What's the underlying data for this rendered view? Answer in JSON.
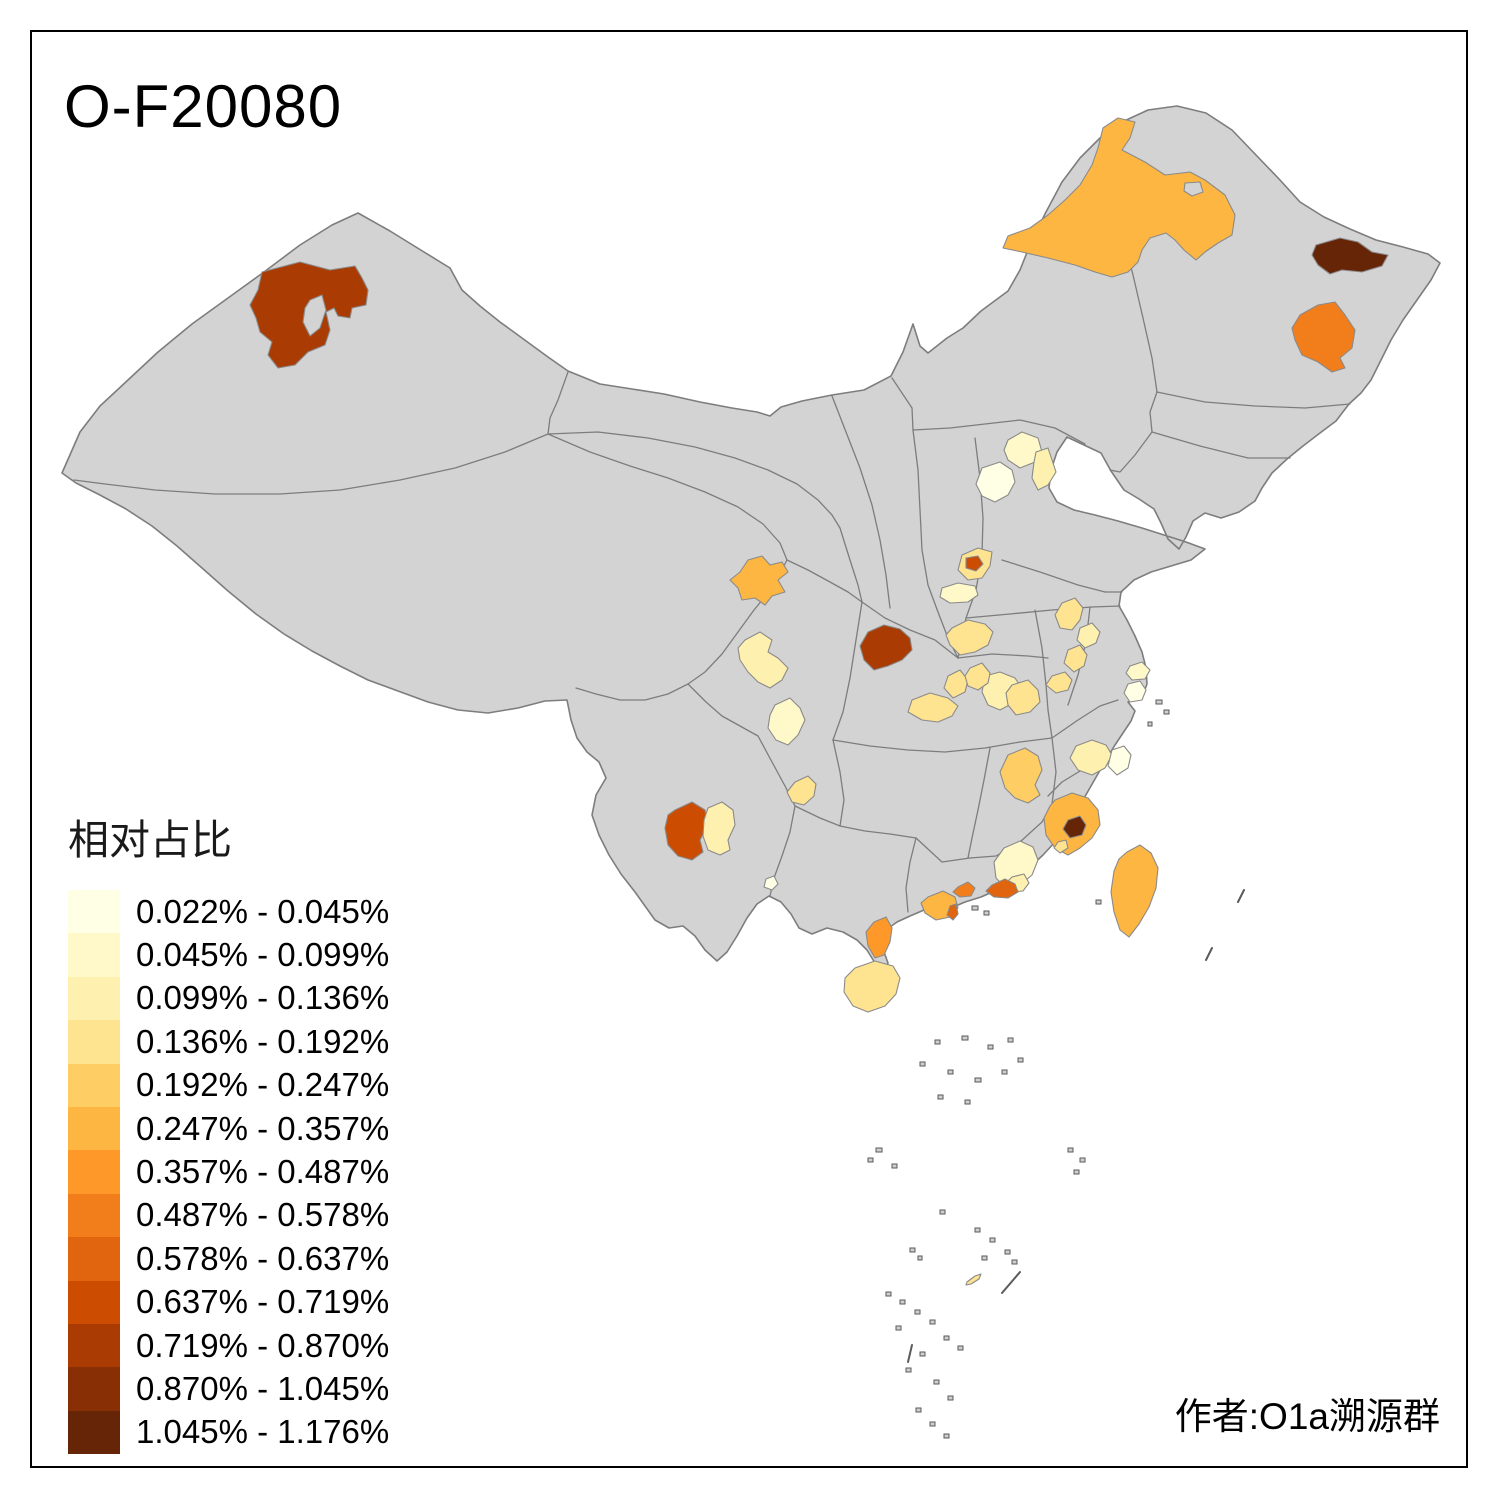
{
  "title": "O-F20080",
  "attribution": "作者:O1a溯源群",
  "legend": {
    "title": "相对占比",
    "classes": [
      {
        "range": "0.022% - 0.045%",
        "color": "#FFFFE5"
      },
      {
        "range": "0.045% - 0.099%",
        "color": "#FFF9C9"
      },
      {
        "range": "0.099% - 0.136%",
        "color": "#FEF0AE"
      },
      {
        "range": "0.136% - 0.192%",
        "color": "#FEE391"
      },
      {
        "range": "0.192% - 0.247%",
        "color": "#FECE65"
      },
      {
        "range": "0.247% - 0.357%",
        "color": "#FEB642"
      },
      {
        "range": "0.357% - 0.487%",
        "color": "#FE9929"
      },
      {
        "range": "0.487% - 0.578%",
        "color": "#F27E1B"
      },
      {
        "range": "0.578% - 0.637%",
        "color": "#E1640E"
      },
      {
        "range": "0.637% - 0.719%",
        "color": "#CC4C02"
      },
      {
        "range": "0.719% - 0.870%",
        "color": "#AA3C03"
      },
      {
        "range": "0.870% - 1.045%",
        "color": "#882F05"
      },
      {
        "range": "1.045% - 1.176%",
        "color": "#662506"
      }
    ]
  },
  "map": {
    "land_fill": "#D3D3D3",
    "boundary_color": "#7D7D7D",
    "region_stroke": "#8A8A8A",
    "sea_fill": "#FFFFFF",
    "islet_fill": "#CFCFCF",
    "islet_stroke": "#5A5A5A",
    "regions": [
      {
        "id": "northwest-xinjiang",
        "class_index": 10
      },
      {
        "id": "hulunbuir-inner-mongolia",
        "class_index": 5
      },
      {
        "id": "east-heilongjiang",
        "class_index": 12
      },
      {
        "id": "southeast-heilongjiang",
        "class_index": 7
      },
      {
        "id": "beijing",
        "class_index": 1
      },
      {
        "id": "central-hebei",
        "class_index": 0
      },
      {
        "id": "tianjin",
        "class_index": 2
      },
      {
        "id": "north-henan",
        "class_index": 3
      },
      {
        "id": "north-henan-spot",
        "class_index": 9
      },
      {
        "id": "west-henan",
        "class_index": 1
      },
      {
        "id": "northwest-sichuan",
        "class_index": 5
      },
      {
        "id": "north-sichuan",
        "class_index": 2
      },
      {
        "id": "chengdu-plain",
        "class_index": 1
      },
      {
        "id": "southwest-shaanxi",
        "class_index": 10
      },
      {
        "id": "southwest-henan",
        "class_index": 3
      },
      {
        "id": "north-hubei",
        "class_index": 3
      },
      {
        "id": "central-hubei",
        "class_index": 3
      },
      {
        "id": "east-hubei",
        "class_index": 2
      },
      {
        "id": "hubei-anhui-border",
        "class_index": 3
      },
      {
        "id": "central-anhui-1",
        "class_index": 3
      },
      {
        "id": "north-anhui-1",
        "class_index": 3
      },
      {
        "id": "north-anhui-2",
        "class_index": 2
      },
      {
        "id": "central-anhui-2",
        "class_index": 3
      },
      {
        "id": "central-anhui-3",
        "class_index": 3
      },
      {
        "id": "shanghai-north",
        "class_index": 1
      },
      {
        "id": "shanghai-south",
        "class_index": 0
      },
      {
        "id": "central-jiangxi",
        "class_index": 4
      },
      {
        "id": "northwest-fujian",
        "class_index": 2
      },
      {
        "id": "northeast-fujian-coast",
        "class_index": 0
      },
      {
        "id": "south-fujian",
        "class_index": 5
      },
      {
        "id": "xiamen-area",
        "class_index": 12
      },
      {
        "id": "south-fujian-coast",
        "class_index": 3
      },
      {
        "id": "east-guangdong",
        "class_index": 1
      },
      {
        "id": "east-guangdong-south",
        "class_index": 2
      },
      {
        "id": "chaoshan-guangdong",
        "class_index": 8
      },
      {
        "id": "shenzhen-area",
        "class_index": 7
      },
      {
        "id": "west-pearl-delta",
        "class_index": 5
      },
      {
        "id": "zhuhai-area",
        "class_index": 8
      },
      {
        "id": "leizhou-peninsula",
        "class_index": 6
      },
      {
        "id": "hainan",
        "class_index": 3
      },
      {
        "id": "central-yunnan",
        "class_index": 9
      },
      {
        "id": "central-yunnan-east",
        "class_index": 2
      },
      {
        "id": "central-guizhou",
        "class_index": 3
      },
      {
        "id": "east-guangxi",
        "class_index": 0
      },
      {
        "id": "taiwan",
        "class_index": 5
      },
      {
        "id": "south-china-sea-island",
        "class_index": 3
      }
    ]
  }
}
